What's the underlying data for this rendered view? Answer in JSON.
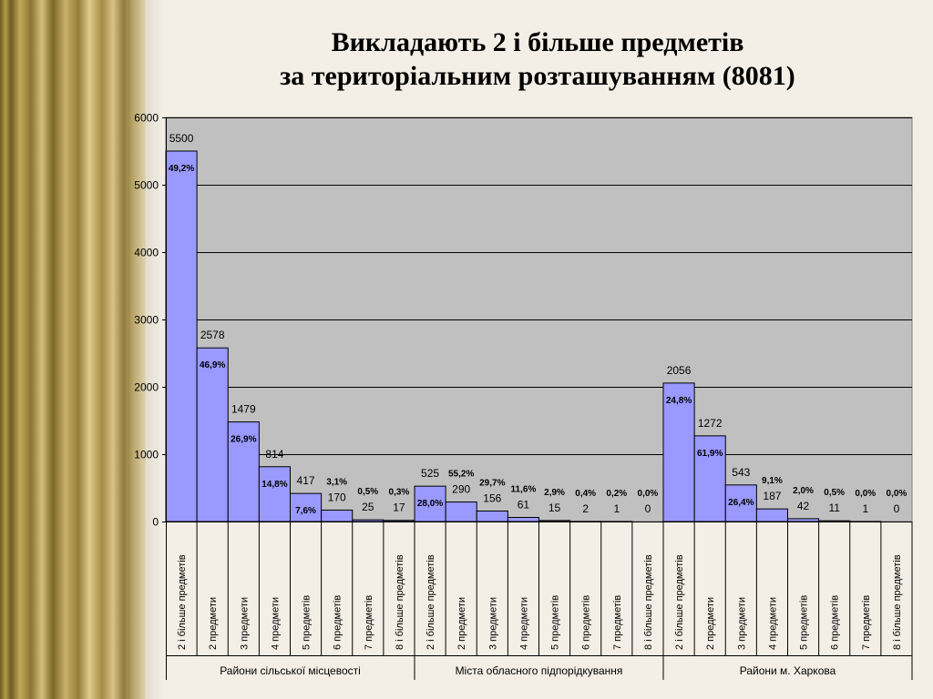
{
  "title_line1": "Викладають 2 і більше предметів",
  "title_line2": "за територіальним розташуванням (8081)",
  "colors": {
    "plot_bg": "#c0c0c0",
    "bar_fill": "#9999ff",
    "bar_stroke": "#000000",
    "grid": "#000000"
  },
  "chart_data": {
    "type": "bar",
    "title": "Викладають 2 і більше предметів за територіальним розташуванням (8081)",
    "ylim": [
      0,
      6000
    ],
    "yticks": [
      0,
      1000,
      2000,
      3000,
      4000,
      5000,
      6000
    ],
    "grid": true,
    "legend": "none",
    "groups": [
      {
        "name": "Райони сільської місцевості",
        "categories": [
          "2 і більше предметів",
          "2 предмети",
          "3 предмети",
          "4 предмети",
          "5 предметів",
          "6 предметів",
          "7 предметів",
          "8 і більше предметів"
        ],
        "values": [
          5500,
          2578,
          1479,
          814,
          417,
          170,
          25,
          17
        ],
        "percent_labels": [
          "49,2%",
          "46,9%",
          "26,9%",
          "14,8%",
          "7,6%",
          "3,1%",
          "0,5%",
          "0,3%"
        ]
      },
      {
        "name": "Міста обласного підпорідкування",
        "categories": [
          "2 і більше предметів",
          "2 предмети",
          "3 предмети",
          "4 предмети",
          "5 предметів",
          "6 предметів",
          "7 предметів",
          "8 і більше предметів"
        ],
        "values": [
          525,
          290,
          156,
          61,
          15,
          2,
          1,
          0
        ],
        "percent_labels": [
          "28,0%",
          "55,2%",
          "29,7%",
          "11,6%",
          "2,9%",
          "0,4%",
          "0,2%",
          "0,0%"
        ]
      },
      {
        "name": "Райони м. Харкова",
        "categories": [
          "2 і більше предметів",
          "2 предмети",
          "3 предмети",
          "4 предмети",
          "5 предметів",
          "6 предметів",
          "7 предметів",
          "8 і більше предметів"
        ],
        "values": [
          2056,
          1272,
          543,
          187,
          42,
          11,
          1,
          0
        ],
        "percent_labels": [
          "24,8%",
          "61,9%",
          "26,4%",
          "9,1%",
          "2,0%",
          "0,5%",
          "0,0%",
          "0,0%"
        ]
      }
    ]
  }
}
